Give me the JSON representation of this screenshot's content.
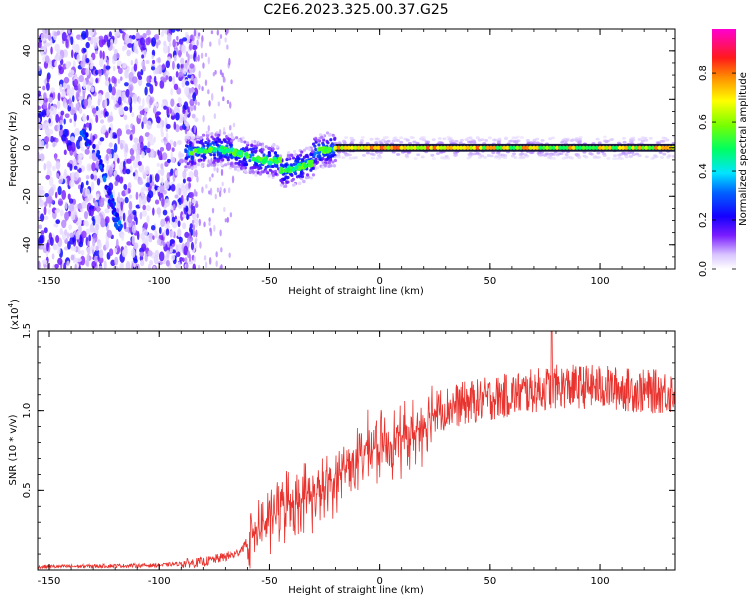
{
  "title": "C2E6.2023.325.00.37.G25",
  "chart_data": [
    {
      "type": "heatmap",
      "xlabel": "Height of straight line (km)",
      "ylabel": "Frequency (Hz)",
      "xlim": [
        -155,
        134
      ],
      "ylim": [
        -50,
        49
      ],
      "x_ticks": [
        -150,
        -100,
        -50,
        0,
        50,
        100
      ],
      "y_ticks": [
        -40,
        -20,
        0,
        20,
        40
      ],
      "colorbar": {
        "label": "Normalized spectral amplitude",
        "range": [
          0,
          1
        ],
        "ticks": [
          "0.0",
          "0.2",
          "0.4",
          "0.6",
          "0.8"
        ],
        "colors": [
          "#ffffff",
          "#b48cff",
          "#5a00ff",
          "#0000ff",
          "#00e5ff",
          "#00ff00",
          "#b4ff00",
          "#ffff00",
          "#ff8000",
          "#ff0000",
          "#ff00c8"
        ]
      },
      "regions": [
        {
          "x_range": [
            -155,
            -88
          ],
          "description_value": "broadband noise, amplitude 0.0–0.3 across full frequency band"
        },
        {
          "x_range": [
            -88,
            -20
          ],
          "freq_hz": [
            -8,
            3
          ],
          "amplitude": [
            0.3,
            0.6
          ]
        },
        {
          "x_range": [
            -20,
            134
          ],
          "freq_hz": [
            0,
            0
          ],
          "amplitude": [
            0.6,
            0.95
          ]
        }
      ],
      "features": [
        {
          "x": [
            -135,
            -127,
            -122,
            -118
          ],
          "y": [
            7,
            -5,
            -22,
            -33
          ]
        }
      ],
      "grid": false
    },
    {
      "type": "line",
      "xlabel": "Height of straight line (km)",
      "ylabel": "SNR (10 * v/v)",
      "multiplier_label": "(x10",
      "multiplier_exp": "4",
      "multiplier_close": ")",
      "xlim": [
        -155,
        134
      ],
      "ylim": [
        0,
        1.5
      ],
      "x_ticks": [
        -150,
        -100,
        -50,
        0,
        50,
        100
      ],
      "y_ticks": [
        "0.5",
        "1.0",
        "1.5"
      ],
      "y_tick_values": [
        0.5,
        1.0,
        1.5
      ],
      "series": [
        {
          "color": "#e8332e",
          "trend_x": [
            -155,
            -100,
            -80,
            -65,
            -55,
            -45,
            -35,
            -25,
            -15,
            -5,
            5,
            15,
            25,
            40,
            60,
            80,
            100,
            120,
            134
          ],
          "trend_y": [
            0.02,
            0.03,
            0.05,
            0.1,
            0.25,
            0.4,
            0.45,
            0.5,
            0.65,
            0.75,
            0.8,
            0.85,
            1.0,
            1.05,
            1.1,
            1.15,
            1.15,
            1.12,
            1.12
          ],
          "peak_x": 78,
          "peak_y": 1.5
        }
      ],
      "grid": false
    }
  ]
}
